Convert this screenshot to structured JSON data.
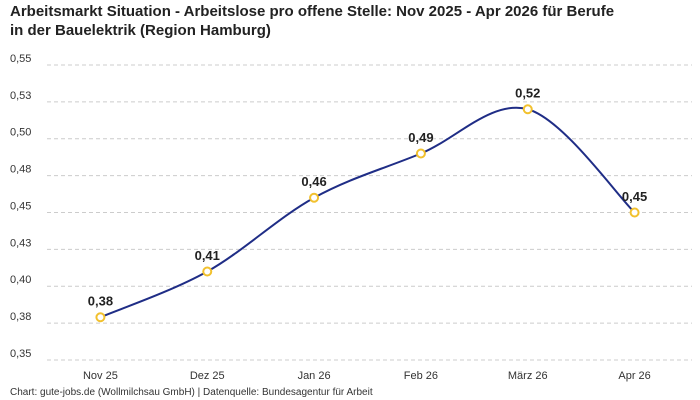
{
  "chart_data": {
    "type": "line",
    "title": "Arbeitsmarkt Situation - Arbeitslose pro offene Stelle: Nov 2025 - Apr 2026 für Berufe in der Bauelektrik (Region Hamburg)",
    "footer": "Chart: gute-jobs.de (Wollmilchsau GmbH) | Datenquelle: Bundesagentur für Arbeit",
    "categories": [
      "Nov 25",
      "Dez 25",
      "Jan 26",
      "Feb 26",
      "März 26",
      "Apr 26"
    ],
    "series": [
      {
        "name": "Arbeitslose pro offene Stelle",
        "color": "#1f2d86",
        "marker_color": "#f2c12e",
        "values": [
          0.379,
          0.41,
          0.46,
          0.49,
          0.52,
          0.45
        ],
        "value_labels": [
          "0,38",
          "0,41",
          "0,46",
          "0,49",
          "0,52",
          "0,45"
        ]
      }
    ],
    "ylim": [
      0.35,
      0.55
    ],
    "yticks": [
      {
        "value": 0.35,
        "label": "0,35"
      },
      {
        "value": 0.375,
        "label": "0,38"
      },
      {
        "value": 0.4,
        "label": "0,40"
      },
      {
        "value": 0.425,
        "label": "0,43"
      },
      {
        "value": 0.45,
        "label": "0,45"
      },
      {
        "value": 0.475,
        "label": "0,48"
      },
      {
        "value": 0.5,
        "label": "0,50"
      },
      {
        "value": 0.525,
        "label": "0,53"
      },
      {
        "value": 0.55,
        "label": "0,55"
      }
    ],
    "grid": true
  }
}
